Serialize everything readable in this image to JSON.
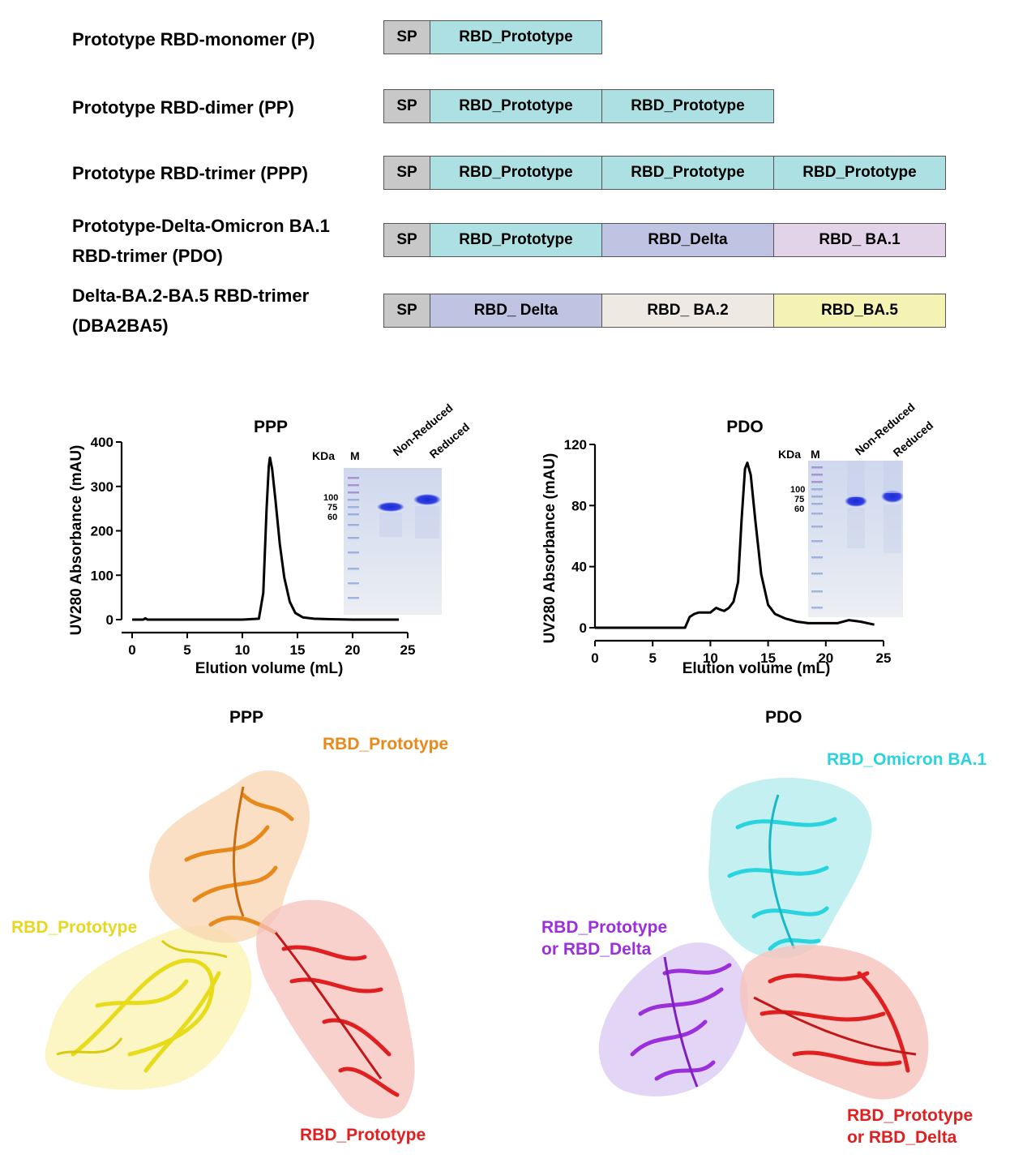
{
  "constructs": [
    {
      "label": [
        "Prototype RBD-monomer (P)"
      ],
      "segments": [
        {
          "text": "SP",
          "color": "#c8c8c8"
        },
        {
          "text": "RBD_Prototype",
          "color": "#ade0e3"
        }
      ]
    },
    {
      "label": [
        "Prototype RBD-dimer (PP)"
      ],
      "segments": [
        {
          "text": "SP",
          "color": "#c8c8c8"
        },
        {
          "text": "RBD_Prototype",
          "color": "#ade0e3"
        },
        {
          "text": "RBD_Prototype",
          "color": "#ade0e3"
        }
      ]
    },
    {
      "label": [
        "Prototype RBD-trimer (PPP)"
      ],
      "segments": [
        {
          "text": "SP",
          "color": "#c8c8c8"
        },
        {
          "text": "RBD_Prototype",
          "color": "#ade0e3"
        },
        {
          "text": "RBD_Prototype",
          "color": "#ade0e3"
        },
        {
          "text": "RBD_Prototype",
          "color": "#ade0e3"
        }
      ]
    },
    {
      "label": [
        "Prototype-Delta-Omicron BA.1",
        "RBD-trimer (PDO)"
      ],
      "segments": [
        {
          "text": "SP",
          "color": "#c8c8c8"
        },
        {
          "text": "RBD_Prototype",
          "color": "#ade0e3"
        },
        {
          "text": "RBD_Delta",
          "color": "#c0c4e3"
        },
        {
          "text": "RBD_ BA.1",
          "color": "#e3d3e8"
        }
      ]
    },
    {
      "label": [
        "Delta-BA.2-BA.5 RBD-trimer",
        "(DBA2BA5)"
      ],
      "segments": [
        {
          "text": "SP",
          "color": "#c8c8c8"
        },
        {
          "text": "RBD_ Delta",
          "color": "#c0c4e3"
        },
        {
          "text": "RBD_ BA.2",
          "color": "#efe9e3"
        },
        {
          "text": "RBD_BA.5",
          "color": "#f4f3b3"
        }
      ]
    }
  ],
  "chart_data": [
    {
      "type": "line",
      "title": "PPP",
      "xlabel": "Elution volume (mL)",
      "ylabel": "UV280 Absorbance (mAU)",
      "xlim": [
        0,
        25
      ],
      "ylim": [
        0,
        400
      ],
      "xticks": [
        0,
        5,
        10,
        15,
        20,
        25
      ],
      "yticks": [
        0,
        100,
        200,
        300,
        400
      ],
      "series": [
        {
          "x": [
            0,
            1,
            1.2,
            1.4,
            2,
            5,
            10,
            11.5,
            11.9,
            12.2,
            12.4,
            12.5,
            12.7,
            13,
            13.4,
            13.8,
            14.3,
            14.8,
            15.5,
            16.5,
            18,
            20,
            24.2
          ],
          "y": [
            0,
            0,
            3,
            0,
            0,
            0,
            0,
            2,
            60,
            250,
            345,
            365,
            340,
            270,
            170,
            95,
            40,
            15,
            5,
            2,
            1,
            0,
            0
          ]
        }
      ],
      "gel": {
        "header": "KDa",
        "lanes": [
          "M",
          "Non-Reduced",
          "Reduced"
        ],
        "markers": [
          "100",
          "75",
          "60"
        ]
      }
    },
    {
      "type": "line",
      "title": "PDO",
      "xlabel": "Elution volume (mL)",
      "ylabel": "UV280 Absorbance (mAU)",
      "xlim": [
        0,
        25
      ],
      "ylim": [
        0,
        120
      ],
      "xticks": [
        0,
        5,
        10,
        15,
        20,
        25
      ],
      "yticks": [
        0,
        40,
        80,
        120
      ],
      "series": [
        {
          "x": [
            0,
            5,
            7.8,
            8.2,
            8.6,
            9,
            9.5,
            10,
            10.5,
            10.8,
            11.2,
            11.6,
            12,
            12.4,
            12.7,
            13,
            13.2,
            13.5,
            13.9,
            14.4,
            15,
            15.6,
            16.5,
            17.5,
            18.5,
            20,
            21,
            22,
            23,
            24.2
          ],
          "y": [
            0,
            0,
            0,
            7,
            9,
            10,
            10,
            10,
            13,
            12,
            11,
            13,
            17,
            30,
            70,
            104,
            108,
            100,
            70,
            35,
            15,
            9,
            6,
            4,
            3,
            3,
            3,
            5,
            4,
            2
          ]
        }
      ],
      "gel": {
        "header": "KDa",
        "lanes": [
          "M",
          "Non-Reduced",
          "Reduced"
        ],
        "markers": [
          "100",
          "75",
          "60"
        ]
      }
    }
  ],
  "structures": [
    {
      "title": "PPP",
      "labels": [
        {
          "text": [
            "RBD_Prototype"
          ],
          "color": "#e8891c"
        },
        {
          "text": [
            "RBD_Prototype"
          ],
          "color": "#e6d820"
        },
        {
          "text": [
            "RBD_Prototype"
          ],
          "color": "#e02020"
        }
      ]
    },
    {
      "title": "PDO",
      "labels": [
        {
          "text": [
            "RBD_Omicron BA.1"
          ],
          "color": "#2ad4de"
        },
        {
          "text": [
            "RBD_Prototype",
            "or RBD_Delta"
          ],
          "color": "#9b2fdc"
        },
        {
          "text": [
            "RBD_Prototype",
            "or RBD_Delta"
          ],
          "color": "#e02020"
        }
      ]
    }
  ]
}
